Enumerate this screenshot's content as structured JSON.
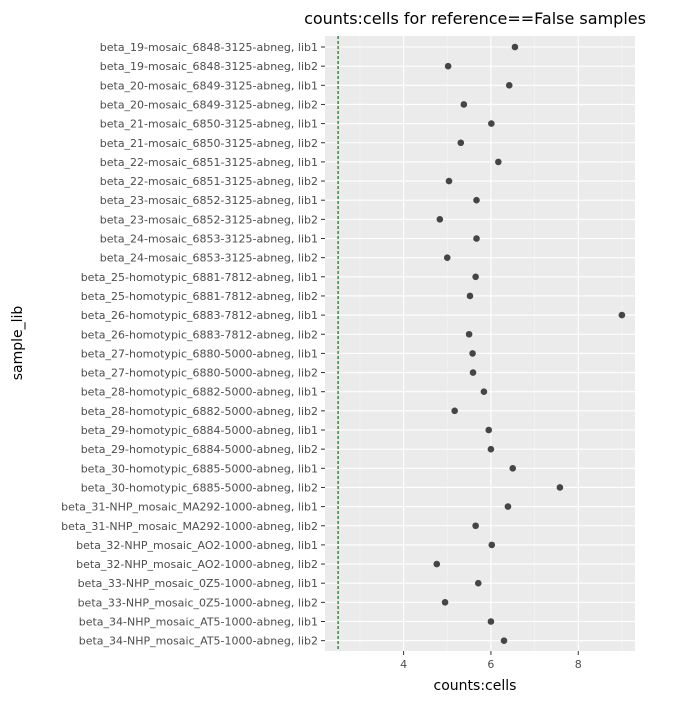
{
  "chart_data": {
    "type": "scatter",
    "title": "counts:cells for reference==False samples",
    "xlabel": "counts:cells",
    "ylabel": "sample_lib",
    "xlim": [
      2.2,
      9.3
    ],
    "xticks": [
      4,
      6,
      8
    ],
    "reference_line": {
      "x": 2.5,
      "color": "#006400",
      "style": "dashed"
    },
    "grid": true,
    "point_color": "#333333",
    "panel_color": "#ebebeb",
    "categories": [
      "beta_19-mosaic_6848-3125-abneg, lib1",
      "beta_19-mosaic_6848-3125-abneg, lib2",
      "beta_20-mosaic_6849-3125-abneg, lib1",
      "beta_20-mosaic_6849-3125-abneg, lib2",
      "beta_21-mosaic_6850-3125-abneg, lib1",
      "beta_21-mosaic_6850-3125-abneg, lib2",
      "beta_22-mosaic_6851-3125-abneg, lib1",
      "beta_22-mosaic_6851-3125-abneg, lib2",
      "beta_23-mosaic_6852-3125-abneg, lib1",
      "beta_23-mosaic_6852-3125-abneg, lib2",
      "beta_24-mosaic_6853-3125-abneg, lib1",
      "beta_24-mosaic_6853-3125-abneg, lib2",
      "beta_25-homotypic_6881-7812-abneg, lib1",
      "beta_25-homotypic_6881-7812-abneg, lib2",
      "beta_26-homotypic_6883-7812-abneg, lib1",
      "beta_26-homotypic_6883-7812-abneg, lib2",
      "beta_27-homotypic_6880-5000-abneg, lib1",
      "beta_27-homotypic_6880-5000-abneg, lib2",
      "beta_28-homotypic_6882-5000-abneg, lib1",
      "beta_28-homotypic_6882-5000-abneg, lib2",
      "beta_29-homotypic_6884-5000-abneg, lib1",
      "beta_29-homotypic_6884-5000-abneg, lib2",
      "beta_30-homotypic_6885-5000-abneg, lib1",
      "beta_30-homotypic_6885-5000-abneg, lib2",
      "beta_31-NHP_mosaic_MA292-1000-abneg, lib1",
      "beta_31-NHP_mosaic_MA292-1000-abneg, lib2",
      "beta_32-NHP_mosaic_AO2-1000-abneg, lib1",
      "beta_32-NHP_mosaic_AO2-1000-abneg, lib2",
      "beta_33-NHP_mosaic_0Z5-1000-abneg, lib1",
      "beta_33-NHP_mosaic_0Z5-1000-abneg, lib2",
      "beta_34-NHP_mosaic_AT5-1000-abneg, lib1",
      "beta_34-NHP_mosaic_AT5-1000-abneg, lib2"
    ],
    "values": [
      6.55,
      5.02,
      6.42,
      5.38,
      6.01,
      5.31,
      6.17,
      5.04,
      5.67,
      4.83,
      5.67,
      5.0,
      5.65,
      5.52,
      9.0,
      5.5,
      5.58,
      5.59,
      5.84,
      5.17,
      5.95,
      6.0,
      6.5,
      7.58,
      6.39,
      5.65,
      6.02,
      4.76,
      5.71,
      4.95,
      6.0,
      6.3
    ]
  }
}
